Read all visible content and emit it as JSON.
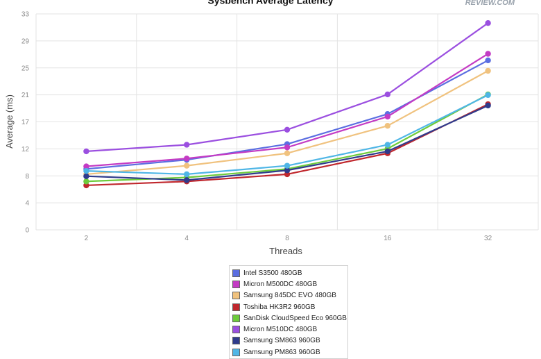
{
  "chart_data": {
    "type": "line",
    "title": "Sysbench Average Latency",
    "xlabel": "Threads",
    "ylabel": "Average (ms)",
    "categories": [
      "2",
      "4",
      "8",
      "16",
      "32"
    ],
    "ylim": [
      0,
      33
    ],
    "yticks": [
      "0",
      "4",
      "8",
      "12",
      "17",
      "21",
      "25",
      "29",
      "33"
    ],
    "ytick_values": [
      0,
      4.125,
      8.25,
      12.375,
      16.5,
      20.625,
      24.75,
      28.875,
      33
    ],
    "grid": true,
    "legend_position": "bottom",
    "series": [
      {
        "name": "Intel S3500 480GB",
        "color": "#5b6ee1",
        "values": [
          9.3,
          10.7,
          13.1,
          17.7,
          25.9
        ]
      },
      {
        "name": "Micron M500DC 480GB",
        "color": "#c43bc4",
        "values": [
          9.7,
          10.9,
          12.6,
          17.3,
          26.9
        ]
      },
      {
        "name": "Samsung 845DC EVO 480GB",
        "color": "#f0c27e",
        "values": [
          8.5,
          9.8,
          11.7,
          15.9,
          24.3
        ]
      },
      {
        "name": "Toshiba HK3R2 960GB",
        "color": "#c0272d",
        "values": [
          6.8,
          7.4,
          8.5,
          11.7,
          19.2
        ]
      },
      {
        "name": "SanDisk CloudSpeed Eco 960GB",
        "color": "#6ecb3c",
        "values": [
          7.4,
          8.0,
          9.3,
          12.4,
          20.7
        ]
      },
      {
        "name": "Micron M510DC 480GB",
        "color": "#9b4fe0",
        "values": [
          12.0,
          13.0,
          15.3,
          20.7,
          31.6
        ]
      },
      {
        "name": "Samsung SM863 960GB",
        "color": "#2f3b8c",
        "values": [
          8.2,
          7.6,
          9.1,
          12.0,
          19.0
        ]
      },
      {
        "name": "Samsung PM863 960GB",
        "color": "#4fb6e6",
        "values": [
          9.0,
          8.5,
          9.8,
          13.0,
          20.6
        ]
      }
    ]
  },
  "logo": {
    "text": "REVIEW.COM"
  }
}
